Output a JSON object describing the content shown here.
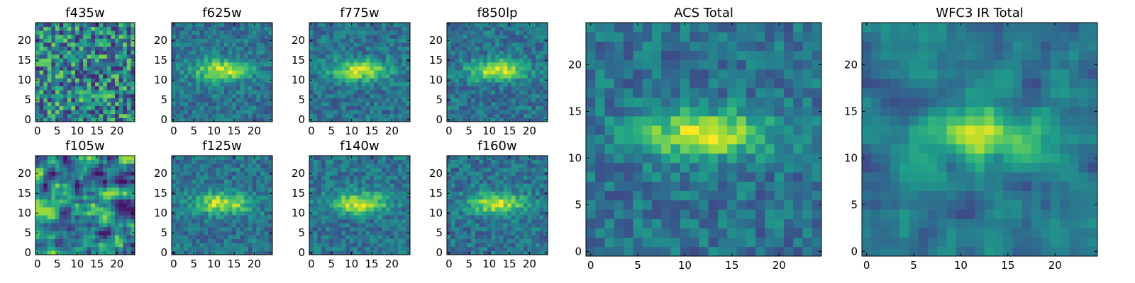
{
  "figure": {
    "description_title": ""
  },
  "chart_data": [
    {
      "type": "heatmap",
      "id": "f435w",
      "title": "f435w",
      "xticks": [
        0,
        5,
        10,
        15,
        20
      ],
      "yticks": [
        0,
        5,
        10,
        15,
        20
      ],
      "xlim": [
        -0.5,
        24.5
      ],
      "ylim": [
        -0.5,
        24.5
      ],
      "grid_size": 25,
      "colormap": "viridis",
      "pattern": "noise"
    },
    {
      "type": "heatmap",
      "id": "f625w",
      "title": "f625w",
      "xticks": [
        0,
        5,
        10,
        15,
        20
      ],
      "yticks": [
        0,
        5,
        10,
        15,
        20
      ],
      "xlim": [
        -0.5,
        24.5
      ],
      "ylim": [
        -0.5,
        24.5
      ],
      "grid_size": 25,
      "colormap": "viridis",
      "pattern": "galaxy"
    },
    {
      "type": "heatmap",
      "id": "f775w",
      "title": "f775w",
      "xticks": [
        0,
        5,
        10,
        15,
        20
      ],
      "yticks": [
        0,
        5,
        10,
        15,
        20
      ],
      "xlim": [
        -0.5,
        24.5
      ],
      "ylim": [
        -0.5,
        24.5
      ],
      "grid_size": 25,
      "colormap": "viridis",
      "pattern": "galaxy"
    },
    {
      "type": "heatmap",
      "id": "f850lp",
      "title": "f850lp",
      "xticks": [
        0,
        5,
        10,
        15,
        20
      ],
      "yticks": [
        0,
        5,
        10,
        15,
        20
      ],
      "xlim": [
        -0.5,
        24.5
      ],
      "ylim": [
        -0.5,
        24.5
      ],
      "grid_size": 25,
      "colormap": "viridis",
      "pattern": "galaxy"
    },
    {
      "type": "heatmap",
      "id": "f105w",
      "title": "f105w",
      "xticks": [
        0,
        5,
        10,
        15,
        20
      ],
      "yticks": [
        0,
        5,
        10,
        15,
        20
      ],
      "xlim": [
        -0.5,
        24.5
      ],
      "ylim": [
        -0.5,
        24.5
      ],
      "grid_size": 25,
      "colormap": "viridis",
      "pattern": "smooth"
    },
    {
      "type": "heatmap",
      "id": "f125w",
      "title": "f125w",
      "xticks": [
        0,
        5,
        10,
        15,
        20
      ],
      "yticks": [
        0,
        5,
        10,
        15,
        20
      ],
      "xlim": [
        -0.5,
        24.5
      ],
      "ylim": [
        -0.5,
        24.5
      ],
      "grid_size": 25,
      "colormap": "viridis",
      "pattern": "galaxy"
    },
    {
      "type": "heatmap",
      "id": "f140w",
      "title": "f140w",
      "xticks": [
        0,
        5,
        10,
        15,
        20
      ],
      "yticks": [
        0,
        5,
        10,
        15,
        20
      ],
      "xlim": [
        -0.5,
        24.5
      ],
      "ylim": [
        -0.5,
        24.5
      ],
      "grid_size": 25,
      "colormap": "viridis",
      "pattern": "galaxy"
    },
    {
      "type": "heatmap",
      "id": "f160w",
      "title": "f160w",
      "xticks": [
        0,
        5,
        10,
        15,
        20
      ],
      "yticks": [
        0,
        5,
        10,
        15,
        20
      ],
      "xlim": [
        -0.5,
        24.5
      ],
      "ylim": [
        -0.5,
        24.5
      ],
      "grid_size": 25,
      "colormap": "viridis",
      "pattern": "galaxy"
    },
    {
      "type": "heatmap",
      "id": "acs-total",
      "title": "ACS Total",
      "xticks": [
        0,
        5,
        10,
        15,
        20
      ],
      "yticks": [
        0,
        5,
        10,
        15,
        20
      ],
      "xlim": [
        -0.5,
        24.5
      ],
      "ylim": [
        -0.5,
        24.5
      ],
      "grid_size": 25,
      "colormap": "viridis",
      "pattern": "galaxy"
    },
    {
      "type": "heatmap",
      "id": "wfc3-ir-total",
      "title": "WFC3 IR Total",
      "xticks": [
        0,
        5,
        10,
        15,
        20
      ],
      "yticks": [
        0,
        5,
        10,
        15,
        20
      ],
      "xlim": [
        -0.5,
        24.5
      ],
      "ylim": [
        -0.5,
        24.5
      ],
      "grid_size": 25,
      "colormap": "viridis",
      "pattern": "galaxy-smooth"
    }
  ]
}
